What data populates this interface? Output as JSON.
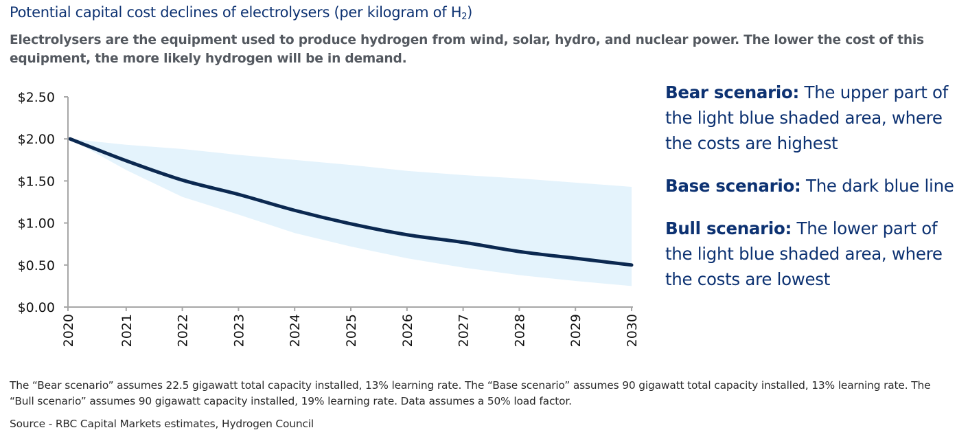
{
  "header": {
    "title_main": "Potential capital cost declines of electrolysers (per kilogram of H",
    "title_sub": "2",
    "title_end": ")",
    "subtitle": "Electrolysers are the equipment used to produce hydrogen from wind, solar, hydro, and nuclear power. The lower the cost of this equipment, the more likely hydrogen will be in demand."
  },
  "legend": [
    {
      "label": "Bear scenario:",
      "text": " The upper part of the light blue shaded area, where the costs are highest"
    },
    {
      "label": "Base scenario:",
      "text": " The dark blue line"
    },
    {
      "label": "Bull scenario:",
      "text": " The lower part of the light blue shaded area, where the costs are lowest"
    }
  ],
  "footer": {
    "note": "The “Bear scenario” assumes 22.5 gigawatt total capacity installed, 13% learning rate. The “Base scenario” assumes 90 gigawatt total capacity installed, 13% learning rate. The “Bull scenario” assumes 90 gigawatt capacity installed, 19% learning rate. Data assumes a 50% load factor.",
    "source": "Source - RBC Capital Markets estimates, Hydrogen Council"
  },
  "colors": {
    "base_line": "#0b2850",
    "band_fill": "#e4f3fc",
    "axis": "#a6a6a6"
  },
  "chart_data": {
    "type": "area",
    "title": "Potential capital cost declines of electrolysers (per kilogram of H2)",
    "xlabel": "",
    "ylabel": "",
    "categories": [
      "2020",
      "2021",
      "2022",
      "2023",
      "2024",
      "2025",
      "2026",
      "2027",
      "2028",
      "2029",
      "2030"
    ],
    "ylim": [
      0,
      2.5
    ],
    "yticks": [
      0,
      0.5,
      1.0,
      1.5,
      2.0,
      2.5
    ],
    "ytick_labels": [
      "$0.00",
      "$0.50",
      "$1.00",
      "$1.50",
      "$2.00",
      "$2.50"
    ],
    "grid": false,
    "series": [
      {
        "name": "Bear scenario",
        "role": "band-upper",
        "values": [
          2.0,
          1.93,
          1.88,
          1.81,
          1.75,
          1.69,
          1.62,
          1.57,
          1.53,
          1.48,
          1.43
        ]
      },
      {
        "name": "Base scenario",
        "role": "line",
        "values": [
          2.0,
          1.74,
          1.51,
          1.34,
          1.15,
          0.99,
          0.86,
          0.77,
          0.66,
          0.58,
          0.5
        ]
      },
      {
        "name": "Bull scenario",
        "role": "band-lower",
        "values": [
          2.0,
          1.63,
          1.31,
          1.1,
          0.88,
          0.72,
          0.58,
          0.47,
          0.38,
          0.31,
          0.25
        ]
      }
    ]
  }
}
